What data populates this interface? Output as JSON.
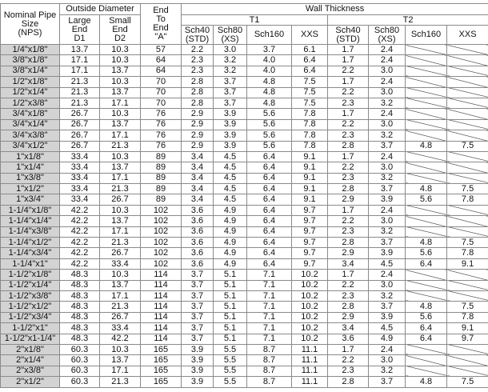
{
  "headers": {
    "nps": "Nominal Pipe\nSize\n(NPS)",
    "outside_diameter": "Outside Diameter",
    "large_end": "Large\nEnd\nD1",
    "small_end": "Small\nEnd\nD2",
    "end_to_end": "End\nTo\nEnd\n\"A\"",
    "wall_thickness": "Wall Thickness",
    "t1": "T1",
    "t2": "T2",
    "sch40": "Sch40\n(STD)",
    "sch80": "Sch80\n(XS)",
    "sch160": "Sch160",
    "xxs": "XXS"
  },
  "rows": [
    [
      "1/4\"x1/8\"",
      "13.7",
      "10.3",
      "57",
      "2.2",
      "3.0",
      "3.7",
      "6.1",
      "1.7",
      "2.4",
      null,
      null
    ],
    [
      "3/8\"x1/8\"",
      "17.1",
      "10.3",
      "64",
      "2.3",
      "3.2",
      "4.0",
      "6.4",
      "1.7",
      "2.4",
      null,
      null
    ],
    [
      "3/8\"x1/4\"",
      "17.1",
      "13.7",
      "64",
      "2.3",
      "3.2",
      "4.0",
      "6.4",
      "2.2",
      "3.0",
      null,
      null
    ],
    [
      "1/2\"x1/8\"",
      "21.3",
      "10.3",
      "70",
      "2.8",
      "3.7",
      "4.8",
      "7.5",
      "1.7",
      "2.4",
      null,
      null
    ],
    [
      "1/2\"x1/4\"",
      "21.3",
      "13.7",
      "70",
      "2.8",
      "3.7",
      "4.8",
      "7.5",
      "2.2",
      "3.0",
      null,
      null
    ],
    [
      "1/2\"x3/8\"",
      "21.3",
      "17.1",
      "70",
      "2.8",
      "3.7",
      "4.8",
      "7.5",
      "2.3",
      "3.2",
      null,
      null
    ],
    [
      "3/4\"x1/8\"",
      "26.7",
      "10.3",
      "76",
      "2.9",
      "3.9",
      "5.6",
      "7.8",
      "1.7",
      "2.4",
      null,
      null
    ],
    [
      "3/4\"x1/4\"",
      "26.7",
      "13.7",
      "76",
      "2.9",
      "3.9",
      "5.6",
      "7.8",
      "2.2",
      "3.0",
      null,
      null
    ],
    [
      "3/4\"x3/8\"",
      "26.7",
      "17.1",
      "76",
      "2.9",
      "3.9",
      "5.6",
      "7.8",
      "2.3",
      "3.2",
      null,
      null
    ],
    [
      "3/4\"x1/2\"",
      "26.7",
      "21.3",
      "76",
      "2.9",
      "3.9",
      "5.6",
      "7.8",
      "2.8",
      "3.7",
      "4.8",
      "7.5"
    ],
    [
      "1\"x1/8\"",
      "33.4",
      "10.3",
      "89",
      "3.4",
      "4.5",
      "6.4",
      "9.1",
      "1.7",
      "2.4",
      null,
      null
    ],
    [
      "1\"x1/4\"",
      "33.4",
      "13.7",
      "89",
      "3.4",
      "4.5",
      "6.4",
      "9.1",
      "2.2",
      "3.0",
      null,
      null
    ],
    [
      "1\"x3/8\"",
      "33.4",
      "17.1",
      "89",
      "3.4",
      "4.5",
      "6.4",
      "9.1",
      "2.3",
      "3.2",
      null,
      null
    ],
    [
      "1\"x1/2\"",
      "33.4",
      "21.3",
      "89",
      "3.4",
      "4.5",
      "6.4",
      "9.1",
      "2.8",
      "3.7",
      "4.8",
      "7.5"
    ],
    [
      "1\"x3/4\"",
      "33.4",
      "26.7",
      "89",
      "3.4",
      "4.5",
      "6.4",
      "9.1",
      "2.9",
      "3.9",
      "5.6",
      "7.8"
    ],
    [
      "1-1/4\"x1/8\"",
      "42.2",
      "10.3",
      "102",
      "3.6",
      "4.9",
      "6.4",
      "9.7",
      "1.7",
      "2.4",
      null,
      null
    ],
    [
      "1-1/4\"x1/4\"",
      "42.2",
      "13.7",
      "102",
      "3.6",
      "4.9",
      "6.4",
      "9.7",
      "2.2",
      "3.0",
      null,
      null
    ],
    [
      "1-1/4\"x3/8\"",
      "42.2",
      "17.1",
      "102",
      "3.6",
      "4.9",
      "6.4",
      "9.7",
      "2.3",
      "3.2",
      null,
      null
    ],
    [
      "1-1/4\"x1/2\"",
      "42.2",
      "21.3",
      "102",
      "3.6",
      "4.9",
      "6.4",
      "9.7",
      "2.8",
      "3.7",
      "4.8",
      "7.5"
    ],
    [
      "1-1/4\"x3/4\"",
      "42.2",
      "26.7",
      "102",
      "3.6",
      "4.9",
      "6.4",
      "9.7",
      "2.9",
      "3.9",
      "5.6",
      "7.8"
    ],
    [
      "1-1/4\"x1\"",
      "42.2",
      "33.4",
      "102",
      "3.6",
      "4.9",
      "6.4",
      "9.7",
      "3.4",
      "4.5",
      "6.4",
      "9.1"
    ],
    [
      "1-1/2\"x1/8\"",
      "48.3",
      "10.3",
      "114",
      "3.7",
      "5.1",
      "7.1",
      "10.2",
      "1.7",
      "2.4",
      null,
      null
    ],
    [
      "1-1/2\"x1/4\"",
      "48.3",
      "13.7",
      "114",
      "3.7",
      "5.1",
      "7.1",
      "10.2",
      "2.2",
      "3.0",
      null,
      null
    ],
    [
      "1-1/2\"x3/8\"",
      "48.3",
      "17.1",
      "114",
      "3.7",
      "5.1",
      "7.1",
      "10.2",
      "2.3",
      "3.2",
      null,
      null
    ],
    [
      "1-1/2\"x1/2\"",
      "48.3",
      "21.3",
      "114",
      "3.7",
      "5.1",
      "7.1",
      "10.2",
      "2.8",
      "3.7",
      "4.8",
      "7.5"
    ],
    [
      "1-1/2\"x3/4\"",
      "48.3",
      "26.7",
      "114",
      "3.7",
      "5.1",
      "7.1",
      "10.2",
      "2.9",
      "3.9",
      "5.6",
      "7.8"
    ],
    [
      "1-1/2\"x1\"",
      "48.3",
      "33.4",
      "114",
      "3.7",
      "5.1",
      "7.1",
      "10.2",
      "3.4",
      "4.5",
      "6.4",
      "9.1"
    ],
    [
      "1-1/2\"x1-1/4\"",
      "48.3",
      "42.2",
      "114",
      "3.7",
      "5.1",
      "7.1",
      "10.2",
      "3.6",
      "4.9",
      "6.4",
      "9.7"
    ],
    [
      "2\"x1/8\"",
      "60.3",
      "10.3",
      "165",
      "3.9",
      "5.5",
      "8.7",
      "11.1",
      "1.7",
      "2.4",
      null,
      null
    ],
    [
      "2\"x1/4\"",
      "60.3",
      "13.7",
      "165",
      "3.9",
      "5.5",
      "8.7",
      "11.1",
      "2.2",
      "3.0",
      null,
      null
    ],
    [
      "2\"x3/8\"",
      "60.3",
      "17.1",
      "165",
      "3.9",
      "5.5",
      "8.7",
      "11.1",
      "2.3",
      "3.2",
      null,
      null
    ],
    [
      "2\"x1/2\"",
      "60.3",
      "21.3",
      "165",
      "3.9",
      "5.5",
      "8.7",
      "11.1",
      "2.8",
      "3.7",
      "4.8",
      "7.5"
    ]
  ],
  "colors": {
    "nps_column_bg": "#d3d3d3",
    "border": "#8a8a8a"
  }
}
